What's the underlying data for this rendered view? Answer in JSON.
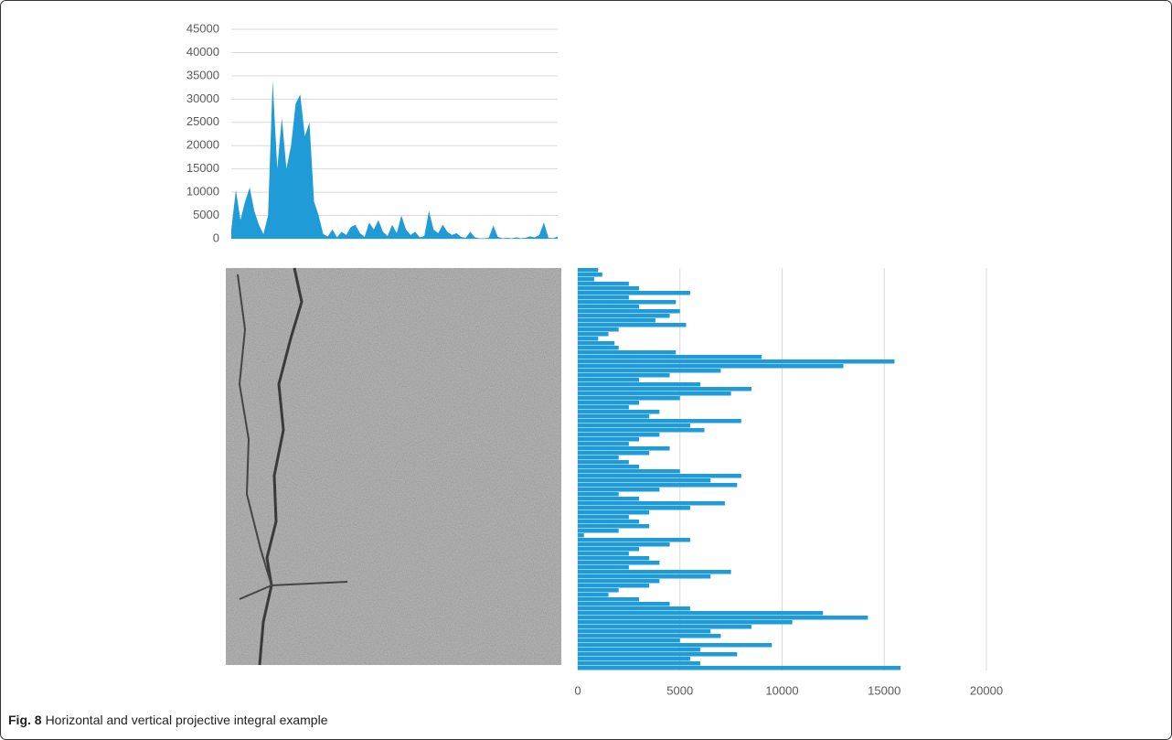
{
  "chart_data": [
    {
      "type": "area",
      "color": "#1f9bd7",
      "values": [
        2000,
        10500,
        4000,
        8000,
        11000,
        6000,
        3000,
        1000,
        5000,
        34000,
        15000,
        26000,
        15000,
        20000,
        29000,
        31000,
        22000,
        25000,
        8000,
        5000,
        1000,
        500,
        2000,
        300,
        1500,
        800,
        2500,
        3000,
        1200,
        400,
        3500,
        2000,
        4000,
        1500,
        600,
        3000,
        1200,
        5000,
        2000,
        800,
        1500,
        300,
        600,
        6000,
        2000,
        1200,
        3000,
        1500,
        800,
        1200,
        400,
        200,
        1500,
        300,
        100,
        100,
        200,
        2800,
        400,
        100,
        200,
        100,
        300,
        100,
        200,
        500,
        300,
        800,
        3500,
        200,
        100,
        500
      ],
      "ylim": [
        0,
        45000
      ],
      "yticks": [
        0,
        5000,
        10000,
        15000,
        20000,
        25000,
        30000,
        35000,
        40000,
        45000
      ],
      "grid": true
    },
    {
      "type": "hbar",
      "color": "#1f9bd7",
      "values": [
        1000,
        1200,
        800,
        2500,
        3000,
        5500,
        2500,
        4800,
        3000,
        5000,
        4500,
        3800,
        5300,
        2000,
        1500,
        1000,
        1800,
        2000,
        4800,
        9000,
        15500,
        13000,
        7000,
        4500,
        3000,
        6000,
        8500,
        7500,
        5000,
        3000,
        2500,
        4000,
        3500,
        8000,
        5500,
        6200,
        4000,
        3000,
        2500,
        4500,
        3500,
        2000,
        2500,
        3000,
        5000,
        8000,
        6500,
        7800,
        4000,
        2000,
        3000,
        7200,
        5500,
        3500,
        2500,
        3000,
        3500,
        2000,
        300,
        5500,
        4500,
        3000,
        2500,
        3500,
        4000,
        2500,
        7500,
        6500,
        4000,
        3500,
        2000,
        1500,
        3000,
        4500,
        5500,
        12000,
        14200,
        10500,
        8500,
        6500,
        7000,
        5000,
        9500,
        6000,
        7800,
        5500,
        6000,
        15800
      ],
      "xlim": [
        0,
        20000
      ],
      "xticks": [
        0,
        5000,
        10000,
        15000,
        20000
      ],
      "grid": true
    }
  ],
  "caption": {
    "label": "Fig. 8",
    "text": "Horizontal and vertical projective integral example"
  }
}
